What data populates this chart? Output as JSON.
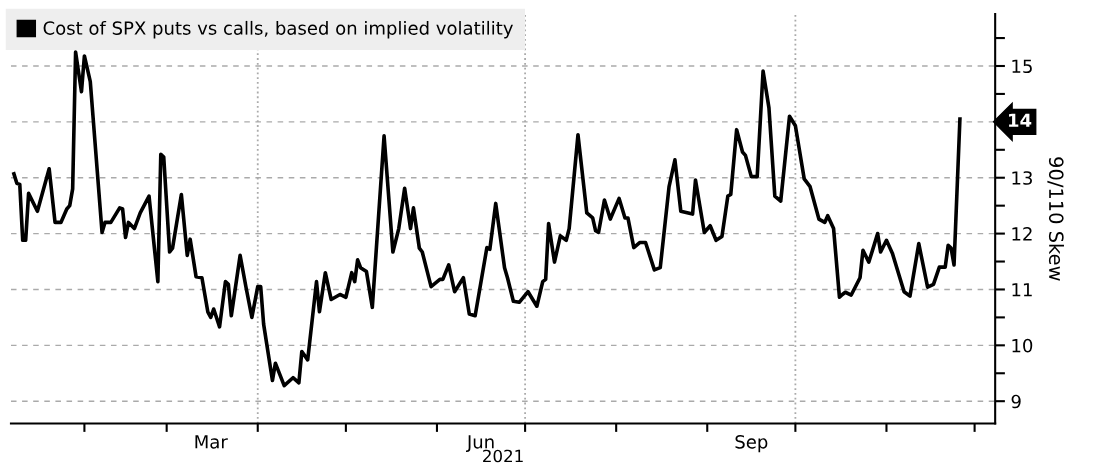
{
  "chart_data": {
    "type": "line",
    "xlabel": "2021",
    "ylabel": "90/110 Skew",
    "x": [
      "2021-01-08",
      "2021-01-09",
      "2021-01-10",
      "2021-01-11",
      "2021-01-12",
      "2021-01-13",
      "2021-01-16",
      "2021-01-20",
      "2021-01-22",
      "2021-01-24",
      "2021-01-26",
      "2021-01-27",
      "2021-01-28",
      "2021-01-29",
      "2021-01-31",
      "2021-02-01",
      "2021-02-03",
      "2021-02-07",
      "2021-02-08",
      "2021-02-10",
      "2021-02-13",
      "2021-02-14",
      "2021-02-15",
      "2021-02-16",
      "2021-02-18",
      "2021-02-20",
      "2021-02-23",
      "2021-02-26",
      "2021-02-27",
      "2021-02-28",
      "2021-03-02",
      "2021-03-03",
      "2021-03-06",
      "2021-03-08",
      "2021-03-09",
      "2021-03-11",
      "2021-03-13",
      "2021-03-15",
      "2021-03-16",
      "2021-03-17",
      "2021-03-19",
      "2021-03-21",
      "2021-03-22",
      "2021-03-23",
      "2021-03-26",
      "2021-03-28",
      "2021-03-30",
      "2021-04-01",
      "2021-04-02",
      "2021-04-03",
      "2021-04-06",
      "2021-04-07",
      "2021-04-10",
      "2021-04-13",
      "2021-04-15",
      "2021-04-16",
      "2021-04-18",
      "2021-04-21",
      "2021-04-22",
      "2021-04-24",
      "2021-04-26",
      "2021-04-29",
      "2021-05-01",
      "2021-05-03",
      "2021-05-04",
      "2021-05-05",
      "2021-05-06",
      "2021-05-08",
      "2021-05-10",
      "2021-05-14",
      "2021-05-17",
      "2021-05-19",
      "2021-05-21",
      "2021-05-23",
      "2021-05-24",
      "2021-05-26",
      "2021-05-27",
      "2021-05-30",
      "2021-06-02",
      "2021-06-03",
      "2021-06-05",
      "2021-06-07",
      "2021-06-10",
      "2021-06-12",
      "2021-06-14",
      "2021-06-18",
      "2021-06-19",
      "2021-06-21",
      "2021-06-24",
      "2021-06-25",
      "2021-06-27",
      "2021-06-29",
      "2021-07-02",
      "2021-07-05",
      "2021-07-07",
      "2021-07-08",
      "2021-07-09",
      "2021-07-11",
      "2021-07-13",
      "2021-07-15",
      "2021-07-16",
      "2021-07-19",
      "2021-07-22",
      "2021-07-24",
      "2021-07-25",
      "2021-07-26",
      "2021-07-28",
      "2021-07-30",
      "2021-08-02",
      "2021-08-04",
      "2021-08-05",
      "2021-08-07",
      "2021-08-09",
      "2021-08-11",
      "2021-08-14",
      "2021-08-16",
      "2021-08-19",
      "2021-08-21",
      "2021-08-23",
      "2021-08-27",
      "2021-08-28",
      "2021-08-31",
      "2021-09-02",
      "2021-09-04",
      "2021-09-06",
      "2021-09-08",
      "2021-09-09",
      "2021-09-11",
      "2021-09-13",
      "2021-09-14",
      "2021-09-16",
      "2021-09-18",
      "2021-09-20",
      "2021-09-22",
      "2021-09-24",
      "2021-09-26",
      "2021-09-29",
      "2021-10-01",
      "2021-10-04",
      "2021-10-06",
      "2021-10-09",
      "2021-10-11",
      "2021-10-12",
      "2021-10-14",
      "2021-10-16",
      "2021-10-17",
      "2021-10-18",
      "2021-10-20",
      "2021-10-23",
      "2021-10-24",
      "2021-10-26",
      "2021-10-29",
      "2021-10-30",
      "2021-11-01",
      "2021-11-03",
      "2021-11-07",
      "2021-11-09",
      "2021-11-12",
      "2021-11-15",
      "2021-11-17",
      "2021-11-19",
      "2021-11-21",
      "2021-11-22",
      "2021-11-23",
      "2021-11-24",
      "2021-11-26"
    ],
    "series": [
      {
        "name": "Cost of SPX puts vs calls, based on implied volatility",
        "color": "#000000",
        "values": [
          13.07,
          12.9,
          12.88,
          11.88,
          11.88,
          12.72,
          12.4,
          13.16,
          12.2,
          12.2,
          12.44,
          12.5,
          12.8,
          15.25,
          14.54,
          15.18,
          14.72,
          12.02,
          12.2,
          12.2,
          12.46,
          12.44,
          11.93,
          12.2,
          12.09,
          12.37,
          12.67,
          11.14,
          13.42,
          13.37,
          11.67,
          11.74,
          12.7,
          11.61,
          11.9,
          11.23,
          11.21,
          10.6,
          10.5,
          10.65,
          10.33,
          11.14,
          11.09,
          10.53,
          11.61,
          11.04,
          10.5,
          11.05,
          11.05,
          10.38,
          9.37,
          9.68,
          9.28,
          9.42,
          9.33,
          9.89,
          9.74,
          11.14,
          10.6,
          11.3,
          10.82,
          10.91,
          10.86,
          11.3,
          11.14,
          11.53,
          11.39,
          11.32,
          10.68,
          13.75,
          11.67,
          12.09,
          12.81,
          12.09,
          12.46,
          11.74,
          11.67,
          11.05,
          11.18,
          11.18,
          11.44,
          10.96,
          11.21,
          10.56,
          10.53,
          11.75,
          11.72,
          12.54,
          11.39,
          11.21,
          10.79,
          10.77,
          10.96,
          10.7,
          11.14,
          11.18,
          12.18,
          11.49,
          11.96,
          11.88,
          12.09,
          13.77,
          12.37,
          12.28,
          12.05,
          12.02,
          12.6,
          12.26,
          12.63,
          12.28,
          12.28,
          11.75,
          11.84,
          11.84,
          11.35,
          11.39,
          12.84,
          13.32,
          12.4,
          12.35,
          12.96,
          12.02,
          12.14,
          11.88,
          11.95,
          12.67,
          12.7,
          13.86,
          13.46,
          13.4,
          13.02,
          13.02,
          14.91,
          14.25,
          12.67,
          12.58,
          14.1,
          13.93,
          12.98,
          12.84,
          12.26,
          12.2,
          12.32,
          12.09,
          10.86,
          10.91,
          10.95,
          10.9,
          11.21,
          11.7,
          11.49,
          12.0,
          11.67,
          11.88,
          11.65,
          10.96,
          10.88,
          11.82,
          11.04,
          11.09,
          11.4,
          11.4,
          11.79,
          11.74,
          11.44,
          14.05
        ]
      }
    ],
    "xlim": [
      "2021-01-07",
      "2021-12-08"
    ],
    "xticks": [
      {
        "value": "2021-02-01",
        "label": null
      },
      {
        "value": "2021-03-01",
        "label": null
      },
      {
        "value": "2021-03-16",
        "label": "Mar"
      },
      {
        "value": "2021-04-01",
        "label": null
      },
      {
        "value": "2021-05-01",
        "label": null
      },
      {
        "value": "2021-06-01",
        "label": null
      },
      {
        "value": "2021-06-16",
        "label": "Jun"
      },
      {
        "value": "2021-07-01",
        "label": null
      },
      {
        "value": "2021-08-01",
        "label": null
      },
      {
        "value": "2021-09-01",
        "label": null
      },
      {
        "value": "2021-09-16",
        "label": "Sep"
      },
      {
        "value": "2021-10-01",
        "label": null
      },
      {
        "value": "2021-11-01",
        "label": null
      },
      {
        "value": "2021-12-01",
        "label": null
      }
    ],
    "ylim": [
      8.6,
      15.93
    ],
    "yticks": [
      9,
      {
        "value": 9.5,
        "label": null
      },
      10,
      {
        "value": 10.5,
        "label": null
      },
      11,
      {
        "value": 11.5,
        "label": null
      },
      12,
      {
        "value": 12.5,
        "label": null
      },
      13,
      {
        "value": 13.5,
        "label": null
      },
      {
        "value": 14,
        "label": null
      },
      {
        "value": 14.5,
        "label": null
      },
      15,
      {
        "value": 15.5,
        "label": null
      }
    ],
    "ref_lines": [
      {
        "axis": "x",
        "value": "2021-04-01",
        "color": "#aaaaaa",
        "line_style": "dotted"
      },
      {
        "axis": "x",
        "value": "2021-07-01",
        "color": "#aaaaaa",
        "line_style": "dotted"
      },
      {
        "axis": "x",
        "value": "2021-10-01",
        "color": "#aaaaaa",
        "line_style": "dotted"
      }
    ],
    "annotations": [
      {
        "text": "14",
        "x": "2021-11-26",
        "y": 14
      }
    ],
    "grid": "y",
    "legend": "top left",
    "marker": "none",
    "line_style": "solid"
  }
}
